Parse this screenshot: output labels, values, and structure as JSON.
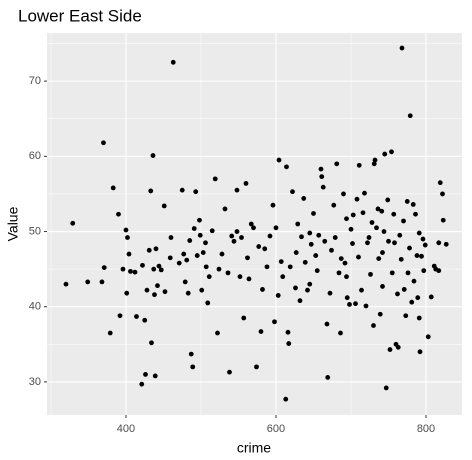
{
  "chart_data": {
    "type": "scatter",
    "title": "Lower East Side",
    "xlabel": "crime",
    "ylabel": "Value",
    "color": "#000000",
    "panel_color": "#ebebeb",
    "grid": true,
    "xlim": [
      294.7,
      848.0
    ],
    "ylim": [
      25.6,
      76.4
    ],
    "xticks": [
      400,
      600,
      800
    ],
    "yticks": [
      30,
      40,
      50,
      60,
      70
    ],
    "xminor": [
      300,
      500,
      700
    ],
    "yminor": [
      35,
      45,
      55,
      65,
      75
    ],
    "x": [
      320,
      329,
      349,
      370,
      368,
      371,
      379,
      383,
      390,
      392,
      396,
      400,
      402,
      401,
      404,
      406,
      412,
      414,
      421,
      422,
      425,
      426,
      428,
      431,
      433,
      434,
      436,
      437,
      438,
      439,
      440,
      442,
      444,
      447,
      451,
      452,
      463,
      460,
      459,
      471,
      475,
      477,
      479,
      481,
      483,
      485,
      487,
      489,
      491,
      493,
      495,
      498,
      499,
      501,
      503,
      506,
      509,
      511,
      515,
      519,
      522,
      524,
      528,
      532,
      536,
      538,
      541,
      544,
      548,
      552,
      554,
      557,
      560,
      562,
      564,
      567,
      570,
      574,
      577,
      580,
      582,
      585,
      588,
      592,
      596,
      598,
      600,
      603,
      604,
      607,
      609,
      613,
      614,
      616,
      617,
      619,
      622,
      626,
      627,
      629,
      632,
      634,
      637,
      639,
      642,
      645,
      647,
      650,
      653,
      655,
      657,
      660,
      661,
      663,
      665,
      668,
      669,
      672,
      674,
      677,
      679,
      681,
      684,
      686,
      687,
      690,
      692,
      694,
      695,
      698,
      700,
      702,
      703,
      706,
      708,
      710,
      711,
      714,
      716,
      718,
      720,
      722,
      724,
      726,
      728,
      730,
      731,
      732,
      734,
      736,
      737,
      739,
      741,
      742,
      744,
      745,
      747,
      749,
      750,
      752,
      754,
      755,
      757,
      758,
      760,
      762,
      763,
      765,
      767,
      768,
      770,
      771,
      773,
      775,
      776,
      778,
      779,
      781,
      783,
      784,
      786,
      788,
      789,
      791,
      792,
      794,
      796,
      797,
      799,
      803,
      807,
      811,
      813,
      817,
      819,
      822,
      823,
      827,
      817,
      791,
      742,
      694,
      645,
      548,
      507
    ],
    "y": [
      43,
      51.1,
      43.3,
      61.8,
      43.3,
      45.2,
      36.5,
      55.8,
      52.3,
      38.8,
      45,
      50.2,
      49.2,
      41.8,
      47,
      44.7,
      44.6,
      38.7,
      29.7,
      45.5,
      38.2,
      31,
      42.2,
      47.5,
      55.4,
      35.2,
      60.1,
      45,
      41.6,
      30.8,
      47.7,
      42.8,
      45.4,
      44.9,
      53.4,
      42,
      72.5,
      49.2,
      46.5,
      45.8,
      55.5,
      47,
      43.3,
      46.2,
      41.8,
      48.8,
      33.7,
      32,
      50.4,
      55.3,
      46.8,
      51.5,
      49.5,
      42.2,
      47.2,
      48.5,
      40.5,
      44,
      50.1,
      57,
      36.5,
      45,
      47,
      53,
      44.5,
      31.3,
      49.4,
      48.7,
      55.5,
      44,
      49.2,
      38.5,
      56.4,
      46.5,
      43.7,
      51,
      50.5,
      32,
      48,
      36.7,
      42.3,
      47.7,
      45.3,
      49.4,
      53.5,
      38,
      50.5,
      41.5,
      59.5,
      46,
      44,
      27.7,
      58.6,
      36.6,
      35.1,
      45.3,
      55.3,
      42.5,
      47.2,
      51,
      40.8,
      49.3,
      54.4,
      45.9,
      42.2,
      49.8,
      48.3,
      52.4,
      46.8,
      44.8,
      49.5,
      58.3,
      57.3,
      55.9,
      48.7,
      37.7,
      30.6,
      41.8,
      47.5,
      53.5,
      49.2,
      59,
      44.5,
      36.5,
      46.4,
      55,
      45.8,
      51.7,
      41.2,
      40.3,
      50.3,
      48.4,
      52.2,
      40.4,
      54.3,
      46.6,
      58.8,
      42.2,
      52.5,
      55.1,
      40.1,
      48.5,
      49.2,
      44.3,
      51.2,
      37.5,
      59,
      59.5,
      50.5,
      53,
      46.4,
      39,
      52.7,
      42.7,
      50,
      60.3,
      29.2,
      54.2,
      48.7,
      34.3,
      60.6,
      44.5,
      52.3,
      48.5,
      35,
      41.7,
      34.6,
      49.5,
      46.3,
      74.4,
      51.4,
      42.3,
      38.8,
      54,
      44.5,
      47.8,
      65.4,
      40.6,
      53.6,
      43.4,
      52.3,
      46.8,
      41.2,
      38.5,
      34,
      46.7,
      49,
      44.8,
      48.2,
      36,
      41.3,
      45.4,
      45,
      48.5,
      56.5,
      55,
      51.5,
      48.3,
      44.8,
      49.8,
      47.2,
      44,
      43,
      50,
      45.3
    ]
  }
}
